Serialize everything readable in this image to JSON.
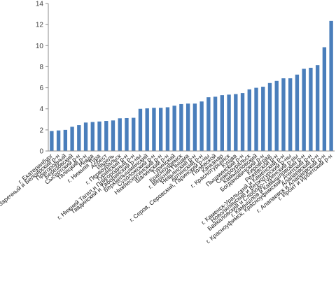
{
  "chart_data": {
    "type": "bar",
    "title": "",
    "xlabel": "",
    "ylabel": "",
    "ylim": [
      0,
      14
    ],
    "yticks": [
      0,
      2,
      4,
      6,
      8,
      10,
      12,
      14
    ],
    "grid": false,
    "legend": "none",
    "bar_color": "#4a7ebb",
    "categories": [
      "г. Екатеринбург",
      "г. Заречный и Белоярский р-н",
      "Пригородный",
      "Березовский",
      "Сысертский р-н",
      "Талицкий р-н",
      "Ревда",
      "г. Нижняя Тура",
      "Асбест",
      "Ивдель",
      "г. Первоуральск",
      "Туринский р-н",
      "г. Нижний Тагил и Пригородный р-н",
      "Тавдинский и Таборинский р-ны",
      "Верхнепышминский",
      "Сухоложский р-н",
      "Нижнесергинский р-н",
      "Шалинский р-н",
      "Туринский",
      "Красноуфимск",
      "г. Верхняя Пышма",
      "Невьянский р-н",
      "Артинский р-н",
      "г. Серов, Серовский, Гаринский р-ны",
      "Полевской",
      "Качканар",
      "г. Краснотурьинск",
      "Кушва",
      "Пышминский р-н",
      "Североуральск",
      "Камышловский",
      "Богдановичский р-н",
      "Кировград",
      "Режевской р-н",
      "г. Каменск-Уральский и Каменский р-н",
      "Новолялинский и Верхотурский р-ны",
      "Байкаловский и Слободо-Туринский р-ны",
      "г. Камышлов и Камышловский р-н",
      "г. Красноуфимск, Красноуфимский, Ачитский р-н",
      "Алапаевский р-н",
      "г. Алапаевск и Алапаевский р-н",
      "г. Ирбит и Ирбитский р-н"
    ],
    "values": [
      1.9,
      1.95,
      2.0,
      2.3,
      2.45,
      2.7,
      2.75,
      2.8,
      2.85,
      2.9,
      3.1,
      3.12,
      3.15,
      4.0,
      4.05,
      4.1,
      4.1,
      4.15,
      4.3,
      4.45,
      4.5,
      4.5,
      4.7,
      5.1,
      5.15,
      5.3,
      5.35,
      5.4,
      5.5,
      5.85,
      6.0,
      6.1,
      6.45,
      6.65,
      6.9,
      6.9,
      7.25,
      7.8,
      7.9,
      8.15,
      9.85,
      12.35
    ]
  }
}
